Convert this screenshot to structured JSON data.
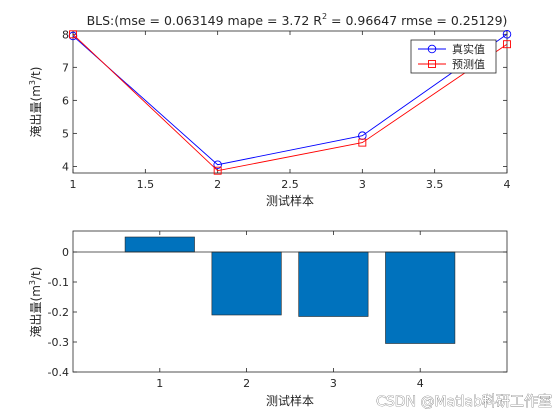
{
  "chart_data": [
    {
      "type": "line",
      "title": "BLS:(mse = 0.063149 mape = 3.72  R",
      "title_sup": "2",
      "title_rest": " = 0.96647 rmse = 0.25129)",
      "xlabel": "测试样本",
      "ylabel": "淹出量(m",
      "ylabel_sup": "3",
      "ylabel_rest": "/t)",
      "xlim": [
        1,
        4
      ],
      "ylim": [
        3.8,
        8.1
      ],
      "xticks": [
        "1",
        "1.5",
        "2",
        "2.5",
        "3",
        "3.5",
        "4"
      ],
      "yticks": [
        "4",
        "5",
        "6",
        "7",
        "8"
      ],
      "x": [
        1,
        2,
        3,
        4
      ],
      "grid": false,
      "legend_position": "top-right",
      "series": [
        {
          "name": "真实值",
          "values": [
            7.95,
            4.05,
            4.93,
            8.0
          ],
          "color": "#0000ff",
          "marker": "circle"
        },
        {
          "name": "预测值",
          "values": [
            8.0,
            3.87,
            4.72,
            7.7
          ],
          "color": "#ff0000",
          "marker": "square"
        }
      ]
    },
    {
      "type": "bar",
      "xlabel": "测试样本",
      "ylabel": "淹出量(m",
      "ylabel_sup": "3",
      "ylabel_rest": "/t)",
      "categories": [
        "1",
        "2",
        "3",
        "4"
      ],
      "values": [
        0.05,
        -0.21,
        -0.215,
        -0.305
      ],
      "ylim": [
        -0.4,
        0.07
      ],
      "yticks": [
        "0",
        "-0.1",
        "-0.2",
        "-0.3",
        "-0.4"
      ],
      "color": "#0072bd"
    }
  ],
  "watermark": "CSDN @Matlab科研工作室"
}
